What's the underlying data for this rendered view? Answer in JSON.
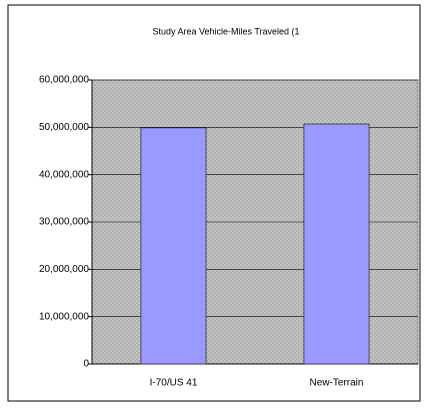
{
  "chart_data": {
    "type": "bar",
    "title": "Study Area Vehicle-Miles Traveled (1",
    "categories": [
      "I-70/US 41",
      "New-Terrain"
    ],
    "values": [
      49900000,
      50700000
    ],
    "color": "#9999ff",
    "ylim": [
      0,
      60000000
    ],
    "yticks": [
      0,
      {
        "value": 10000000,
        "label": "10,000,000"
      },
      {
        "value": 20000000,
        "label": "20,000,000"
      },
      {
        "value": 30000000,
        "label": "30,000,000"
      },
      {
        "value": 40000000,
        "label": "40,000,000"
      },
      {
        "value": 50000000,
        "label": "50,000,000"
      },
      {
        "value": 60000000,
        "label": "60,000,000"
      }
    ],
    "grid": true
  }
}
